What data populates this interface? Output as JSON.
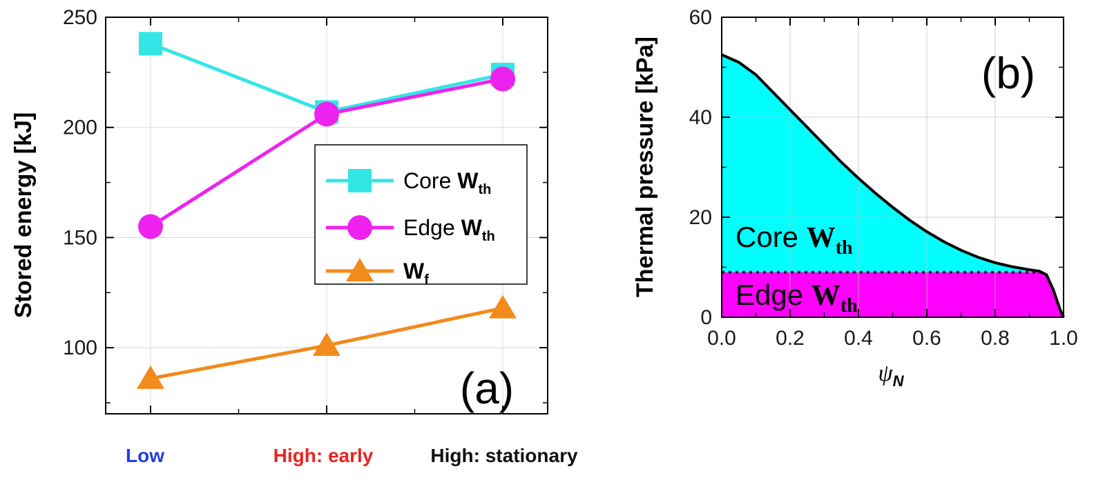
{
  "chart_data": [
    {
      "type": "line",
      "panel_label": "(a)",
      "ylabel": "Stored energy [kJ]",
      "ylim": [
        70,
        250
      ],
      "yticks": [
        "100",
        "150",
        "200",
        "250"
      ],
      "categories": [
        "Low",
        "High: early",
        "High: stationary"
      ],
      "category_colors": [
        "#1f3fe0",
        "#ee2020",
        "#111111"
      ],
      "grid": true,
      "legend_position": "center-right",
      "series": [
        {
          "name_main": "Core ",
          "name_bold": "W",
          "name_sub": "th",
          "color": "#33e6e6",
          "marker": "square",
          "values": [
            238,
            207,
            224
          ]
        },
        {
          "name_main": "Edge ",
          "name_bold": "W",
          "name_sub": "th",
          "color": "#ee22ee",
          "marker": "circle",
          "values": [
            155,
            206,
            222
          ]
        },
        {
          "name_main": "",
          "name_bold": "W",
          "name_sub": "f",
          "color": "#f28a1c",
          "marker": "triangle",
          "values": [
            86,
            101,
            118
          ]
        }
      ]
    },
    {
      "type": "area",
      "panel_label": "(b)",
      "ylabel": "Thermal pressure [kPa]",
      "xlabel_main": "ψ",
      "xlabel_sub": "N",
      "xlim": [
        0,
        1
      ],
      "ylim": [
        0,
        60
      ],
      "xticks": [
        "0.0",
        "0.2",
        "0.4",
        "0.6",
        "0.8",
        "1.0"
      ],
      "yticks": [
        "0",
        "20",
        "40",
        "60"
      ],
      "grid": true,
      "edge_level": 9,
      "profile": {
        "x": [
          0.0,
          0.05,
          0.1,
          0.15,
          0.2,
          0.25,
          0.3,
          0.35,
          0.4,
          0.45,
          0.5,
          0.55,
          0.6,
          0.65,
          0.7,
          0.75,
          0.8,
          0.85,
          0.9,
          0.93,
          0.95,
          0.97,
          0.98,
          0.99,
          1.0
        ],
        "y": [
          52.5,
          51,
          48.5,
          45,
          41.5,
          38,
          34.5,
          31,
          27.8,
          24.8,
          22,
          19.4,
          17.1,
          15.1,
          13.4,
          12,
          10.9,
          10.1,
          9.5,
          9.2,
          8.5,
          5.5,
          3.5,
          1.5,
          0
        ]
      },
      "areas": [
        {
          "name_main": "Core ",
          "name_bold": "W",
          "name_sub": "th",
          "color": "#00ffff"
        },
        {
          "name_main": "Edge ",
          "name_bold": "W",
          "name_sub": "th",
          "color": "#ff00ff"
        }
      ]
    }
  ]
}
